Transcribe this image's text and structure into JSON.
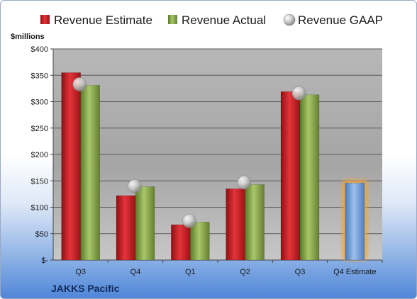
{
  "chart_data": {
    "type": "bar",
    "company": "JAKKS Pacific",
    "ylabel": "$millions",
    "ylim": [
      0,
      400
    ],
    "yticks": [
      0,
      50,
      100,
      150,
      200,
      250,
      300,
      350,
      400
    ],
    "ytick_labels": [
      "$-",
      "$50",
      "$100",
      "$150",
      "$200",
      "$250",
      "$300",
      "$350",
      "$400"
    ],
    "categories": [
      "Q3",
      "Q4",
      "Q1",
      "Q2",
      "Q3",
      "Q4 Estimate"
    ],
    "legend_position": "top",
    "grid": true,
    "series": [
      {
        "name": "Revenue Estimate",
        "kind": "bar",
        "color": "#d01f26",
        "values": [
          355,
          122,
          67,
          135,
          319,
          null
        ]
      },
      {
        "name": "Revenue Actual",
        "kind": "bar",
        "color": "#8aab4a",
        "values": [
          331,
          139,
          72,
          143,
          313,
          null
        ]
      },
      {
        "name": "Revenue GAAP",
        "kind": "marker",
        "color": "#c8c8c8",
        "values": [
          333,
          140,
          74,
          147,
          316,
          null
        ]
      }
    ],
    "estimate_bar": {
      "category_index": 5,
      "value": 146,
      "color": "#6f9fd8",
      "glow": "#f2a236"
    }
  }
}
